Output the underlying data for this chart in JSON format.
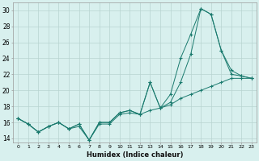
{
  "xlabel": "Humidex (Indice chaleur)",
  "x_values": [
    0,
    1,
    2,
    3,
    4,
    5,
    6,
    7,
    8,
    9,
    10,
    11,
    12,
    13,
    14,
    15,
    16,
    17,
    18,
    19,
    20,
    21,
    22,
    23
  ],
  "series": [
    [
      16.5,
      15.8,
      14.8,
      15.5,
      16.0,
      15.2,
      15.5,
      13.8,
      15.8,
      15.8,
      17.0,
      17.2,
      17.0,
      17.5,
      17.8,
      18.2,
      19.0,
      19.5,
      20.0,
      20.5,
      21.0,
      21.5,
      21.5,
      21.5
    ],
    [
      16.5,
      15.8,
      14.8,
      15.5,
      16.0,
      15.2,
      15.8,
      13.8,
      16.0,
      16.0,
      17.2,
      17.5,
      17.0,
      21.0,
      17.8,
      18.5,
      21.0,
      24.5,
      30.2,
      29.5,
      25.0,
      22.0,
      21.8,
      21.5
    ],
    [
      16.5,
      15.8,
      14.8,
      15.5,
      16.0,
      15.2,
      15.8,
      13.8,
      16.0,
      16.0,
      17.2,
      17.5,
      17.0,
      21.0,
      17.8,
      19.5,
      24.0,
      27.0,
      30.2,
      29.5,
      25.0,
      22.5,
      21.8,
      21.5
    ]
  ],
  "line_color": "#1a7a6e",
  "bg_color": "#d8f0ee",
  "grid_color": "#b8d4d0",
  "ylim": [
    13.5,
    31
  ],
  "yticks": [
    14,
    16,
    18,
    20,
    22,
    24,
    26,
    28,
    30
  ],
  "xlim": [
    -0.5,
    23.5
  ],
  "xticks": [
    0,
    1,
    2,
    3,
    4,
    5,
    6,
    7,
    8,
    9,
    10,
    11,
    12,
    13,
    14,
    15,
    16,
    17,
    18,
    19,
    20,
    21,
    22,
    23
  ],
  "marker": "+"
}
